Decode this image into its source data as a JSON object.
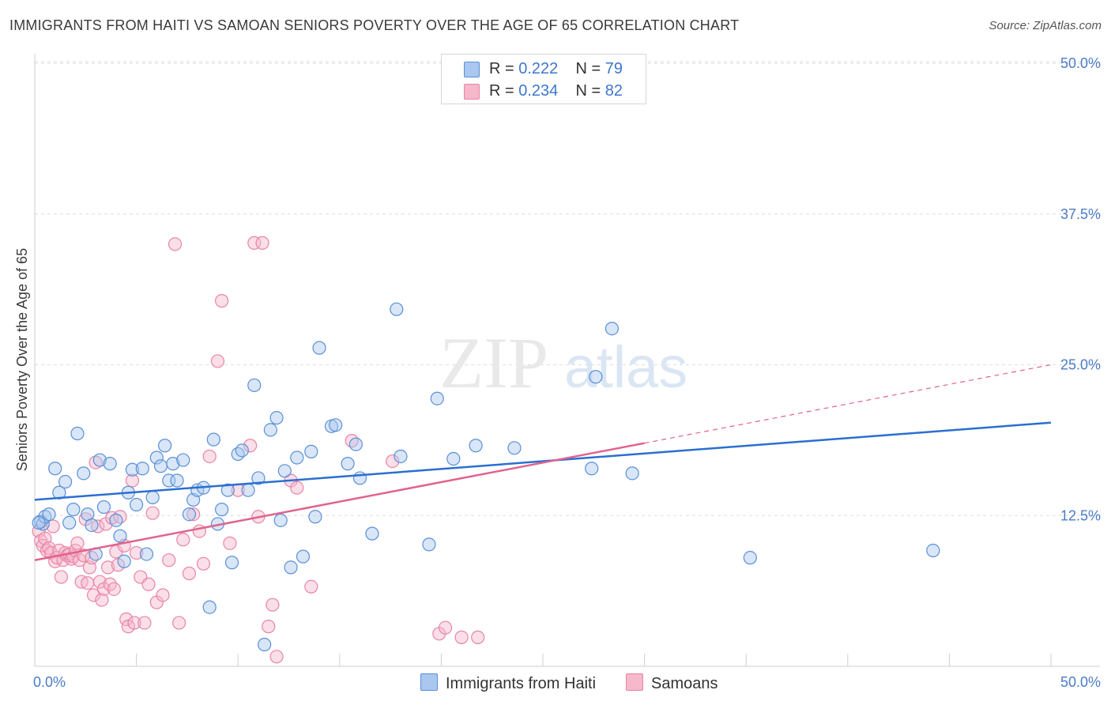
{
  "title": "IMMIGRANTS FROM HAITI VS SAMOAN SENIORS POVERTY OVER THE AGE OF 65 CORRELATION CHART",
  "source": "Source: ZipAtlas.com",
  "legend": {
    "r_label": "R =",
    "n_label": "N =",
    "series1": {
      "r": "0.222",
      "n": "79"
    },
    "series2": {
      "r": "0.234",
      "n": "82"
    }
  },
  "bottom_legend": {
    "series1": "Immigrants from Haiti",
    "series2": "Samoans"
  },
  "colors": {
    "blue_fill": "#a9c7ef",
    "blue_stroke": "#5b8fd6",
    "blue_line": "#2b6fcf",
    "pink_fill": "#f6b8cb",
    "pink_stroke": "#e884a6",
    "pink_line": "#e0638f",
    "grid": "#dddddd",
    "tick_text": "#4a7cc7"
  },
  "chart_data": {
    "type": "scatter",
    "ylabel": "Seniors Poverty Over the Age of 65",
    "xlabel": "",
    "x_tick_labels": [
      "0.0%",
      "50.0%"
    ],
    "y_tick_labels": [
      "12.5%",
      "25.0%",
      "37.5%",
      "50.0%"
    ],
    "xlim": [
      0,
      50
    ],
    "ylim": [
      0,
      50
    ],
    "grid": true,
    "legend_position": "top-center",
    "series": [
      {
        "name": "Immigrants from Haiti",
        "color": "#5b8fd6",
        "trend": {
          "x": [
            0,
            50
          ],
          "y": [
            13.8,
            20.2
          ]
        },
        "points": [
          [
            0.3,
            12.0
          ],
          [
            0.4,
            11.8
          ],
          [
            0.5,
            12.4
          ],
          [
            0.7,
            12.6
          ],
          [
            1.0,
            16.4
          ],
          [
            1.2,
            14.4
          ],
          [
            1.5,
            15.3
          ],
          [
            1.7,
            11.9
          ],
          [
            1.9,
            13.0
          ],
          [
            2.1,
            19.3
          ],
          [
            2.4,
            16.0
          ],
          [
            2.6,
            12.6
          ],
          [
            2.8,
            11.7
          ],
          [
            3.0,
            9.3
          ],
          [
            3.2,
            17.1
          ],
          [
            3.4,
            13.2
          ],
          [
            3.7,
            16.8
          ],
          [
            4.0,
            12.1
          ],
          [
            4.2,
            10.8
          ],
          [
            4.4,
            8.7
          ],
          [
            4.6,
            14.4
          ],
          [
            4.8,
            16.3
          ],
          [
            5.0,
            13.4
          ],
          [
            5.3,
            16.4
          ],
          [
            5.5,
            9.3
          ],
          [
            5.8,
            14.0
          ],
          [
            6.0,
            17.3
          ],
          [
            6.2,
            16.6
          ],
          [
            6.4,
            18.3
          ],
          [
            6.6,
            15.4
          ],
          [
            6.8,
            16.8
          ],
          [
            7.0,
            15.4
          ],
          [
            7.3,
            17.1
          ],
          [
            7.6,
            12.6
          ],
          [
            7.8,
            13.8
          ],
          [
            8.0,
            14.6
          ],
          [
            8.3,
            14.8
          ],
          [
            8.6,
            4.9
          ],
          [
            8.8,
            18.8
          ],
          [
            9.0,
            11.8
          ],
          [
            9.2,
            13.0
          ],
          [
            9.5,
            14.6
          ],
          [
            9.7,
            8.6
          ],
          [
            10.0,
            17.6
          ],
          [
            10.2,
            17.9
          ],
          [
            10.5,
            14.6
          ],
          [
            10.8,
            23.3
          ],
          [
            11.0,
            15.6
          ],
          [
            11.3,
            1.8
          ],
          [
            11.6,
            19.6
          ],
          [
            11.9,
            20.6
          ],
          [
            12.1,
            12.1
          ],
          [
            12.3,
            16.2
          ],
          [
            12.6,
            8.2
          ],
          [
            12.9,
            17.3
          ],
          [
            13.2,
            9.1
          ],
          [
            13.6,
            17.8
          ],
          [
            13.8,
            12.4
          ],
          [
            14.0,
            26.4
          ],
          [
            14.6,
            19.9
          ],
          [
            14.8,
            20.0
          ],
          [
            15.4,
            16.8
          ],
          [
            15.8,
            18.4
          ],
          [
            16.0,
            15.6
          ],
          [
            16.6,
            11.0
          ],
          [
            17.8,
            29.6
          ],
          [
            18.0,
            17.4
          ],
          [
            19.4,
            10.1
          ],
          [
            19.8,
            22.2
          ],
          [
            20.6,
            17.2
          ],
          [
            21.7,
            18.3
          ],
          [
            23.6,
            18.1
          ],
          [
            27.4,
            16.4
          ],
          [
            27.6,
            24.0
          ],
          [
            28.4,
            28.0
          ],
          [
            29.4,
            16.0
          ],
          [
            35.2,
            9.0
          ],
          [
            44.2,
            9.6
          ],
          [
            0.2,
            11.9
          ]
        ]
      },
      {
        "name": "Samoans",
        "color": "#e884a6",
        "trend": {
          "x": [
            0,
            30
          ],
          "y": [
            8.8,
            18.5
          ]
        },
        "trend_extension": {
          "x": [
            30,
            50
          ],
          "y": [
            18.5,
            25.0
          ]
        },
        "points": [
          [
            0.2,
            11.2
          ],
          [
            0.3,
            10.4
          ],
          [
            0.4,
            10.0
          ],
          [
            0.5,
            10.6
          ],
          [
            0.6,
            9.6
          ],
          [
            0.7,
            9.8
          ],
          [
            0.8,
            9.4
          ],
          [
            0.9,
            11.6
          ],
          [
            1.0,
            8.7
          ],
          [
            1.1,
            9.0
          ],
          [
            1.2,
            9.6
          ],
          [
            1.3,
            7.4
          ],
          [
            1.4,
            8.8
          ],
          [
            1.5,
            9.4
          ],
          [
            1.6,
            9.2
          ],
          [
            1.7,
            9.3
          ],
          [
            1.8,
            8.9
          ],
          [
            1.9,
            9.1
          ],
          [
            2.0,
            9.6
          ],
          [
            2.1,
            10.2
          ],
          [
            2.2,
            8.8
          ],
          [
            2.3,
            7.0
          ],
          [
            2.4,
            9.2
          ],
          [
            2.5,
            12.2
          ],
          [
            2.6,
            6.9
          ],
          [
            2.7,
            8.2
          ],
          [
            2.8,
            9.0
          ],
          [
            2.9,
            5.9
          ],
          [
            3.0,
            16.9
          ],
          [
            3.1,
            11.6
          ],
          [
            3.2,
            7.0
          ],
          [
            3.3,
            5.5
          ],
          [
            3.4,
            6.4
          ],
          [
            3.5,
            11.8
          ],
          [
            3.6,
            8.2
          ],
          [
            3.7,
            6.8
          ],
          [
            3.8,
            12.3
          ],
          [
            3.9,
            6.4
          ],
          [
            4.0,
            9.5
          ],
          [
            4.1,
            8.4
          ],
          [
            4.2,
            12.4
          ],
          [
            4.4,
            10.0
          ],
          [
            4.5,
            3.9
          ],
          [
            4.6,
            3.3
          ],
          [
            4.8,
            15.4
          ],
          [
            4.9,
            3.6
          ],
          [
            5.0,
            9.4
          ],
          [
            5.2,
            7.4
          ],
          [
            5.4,
            3.6
          ],
          [
            5.6,
            6.8
          ],
          [
            5.8,
            12.7
          ],
          [
            6.0,
            5.3
          ],
          [
            6.3,
            5.9
          ],
          [
            6.6,
            8.8
          ],
          [
            6.9,
            35.0
          ],
          [
            7.1,
            3.6
          ],
          [
            7.3,
            10.5
          ],
          [
            7.6,
            7.7
          ],
          [
            7.8,
            12.6
          ],
          [
            8.1,
            11.2
          ],
          [
            8.3,
            8.5
          ],
          [
            8.6,
            17.4
          ],
          [
            9.0,
            25.3
          ],
          [
            9.2,
            30.3
          ],
          [
            9.6,
            10.2
          ],
          [
            10.0,
            14.6
          ],
          [
            10.6,
            18.3
          ],
          [
            10.8,
            35.1
          ],
          [
            11.0,
            12.4
          ],
          [
            11.2,
            35.1
          ],
          [
            11.5,
            3.3
          ],
          [
            11.7,
            5.1
          ],
          [
            11.9,
            0.8
          ],
          [
            12.6,
            15.4
          ],
          [
            12.9,
            14.8
          ],
          [
            13.6,
            6.6
          ],
          [
            15.6,
            18.7
          ],
          [
            17.6,
            17.0
          ],
          [
            19.9,
            2.7
          ],
          [
            20.2,
            3.2
          ],
          [
            21.0,
            2.4
          ],
          [
            21.8,
            2.4
          ]
        ]
      }
    ]
  }
}
